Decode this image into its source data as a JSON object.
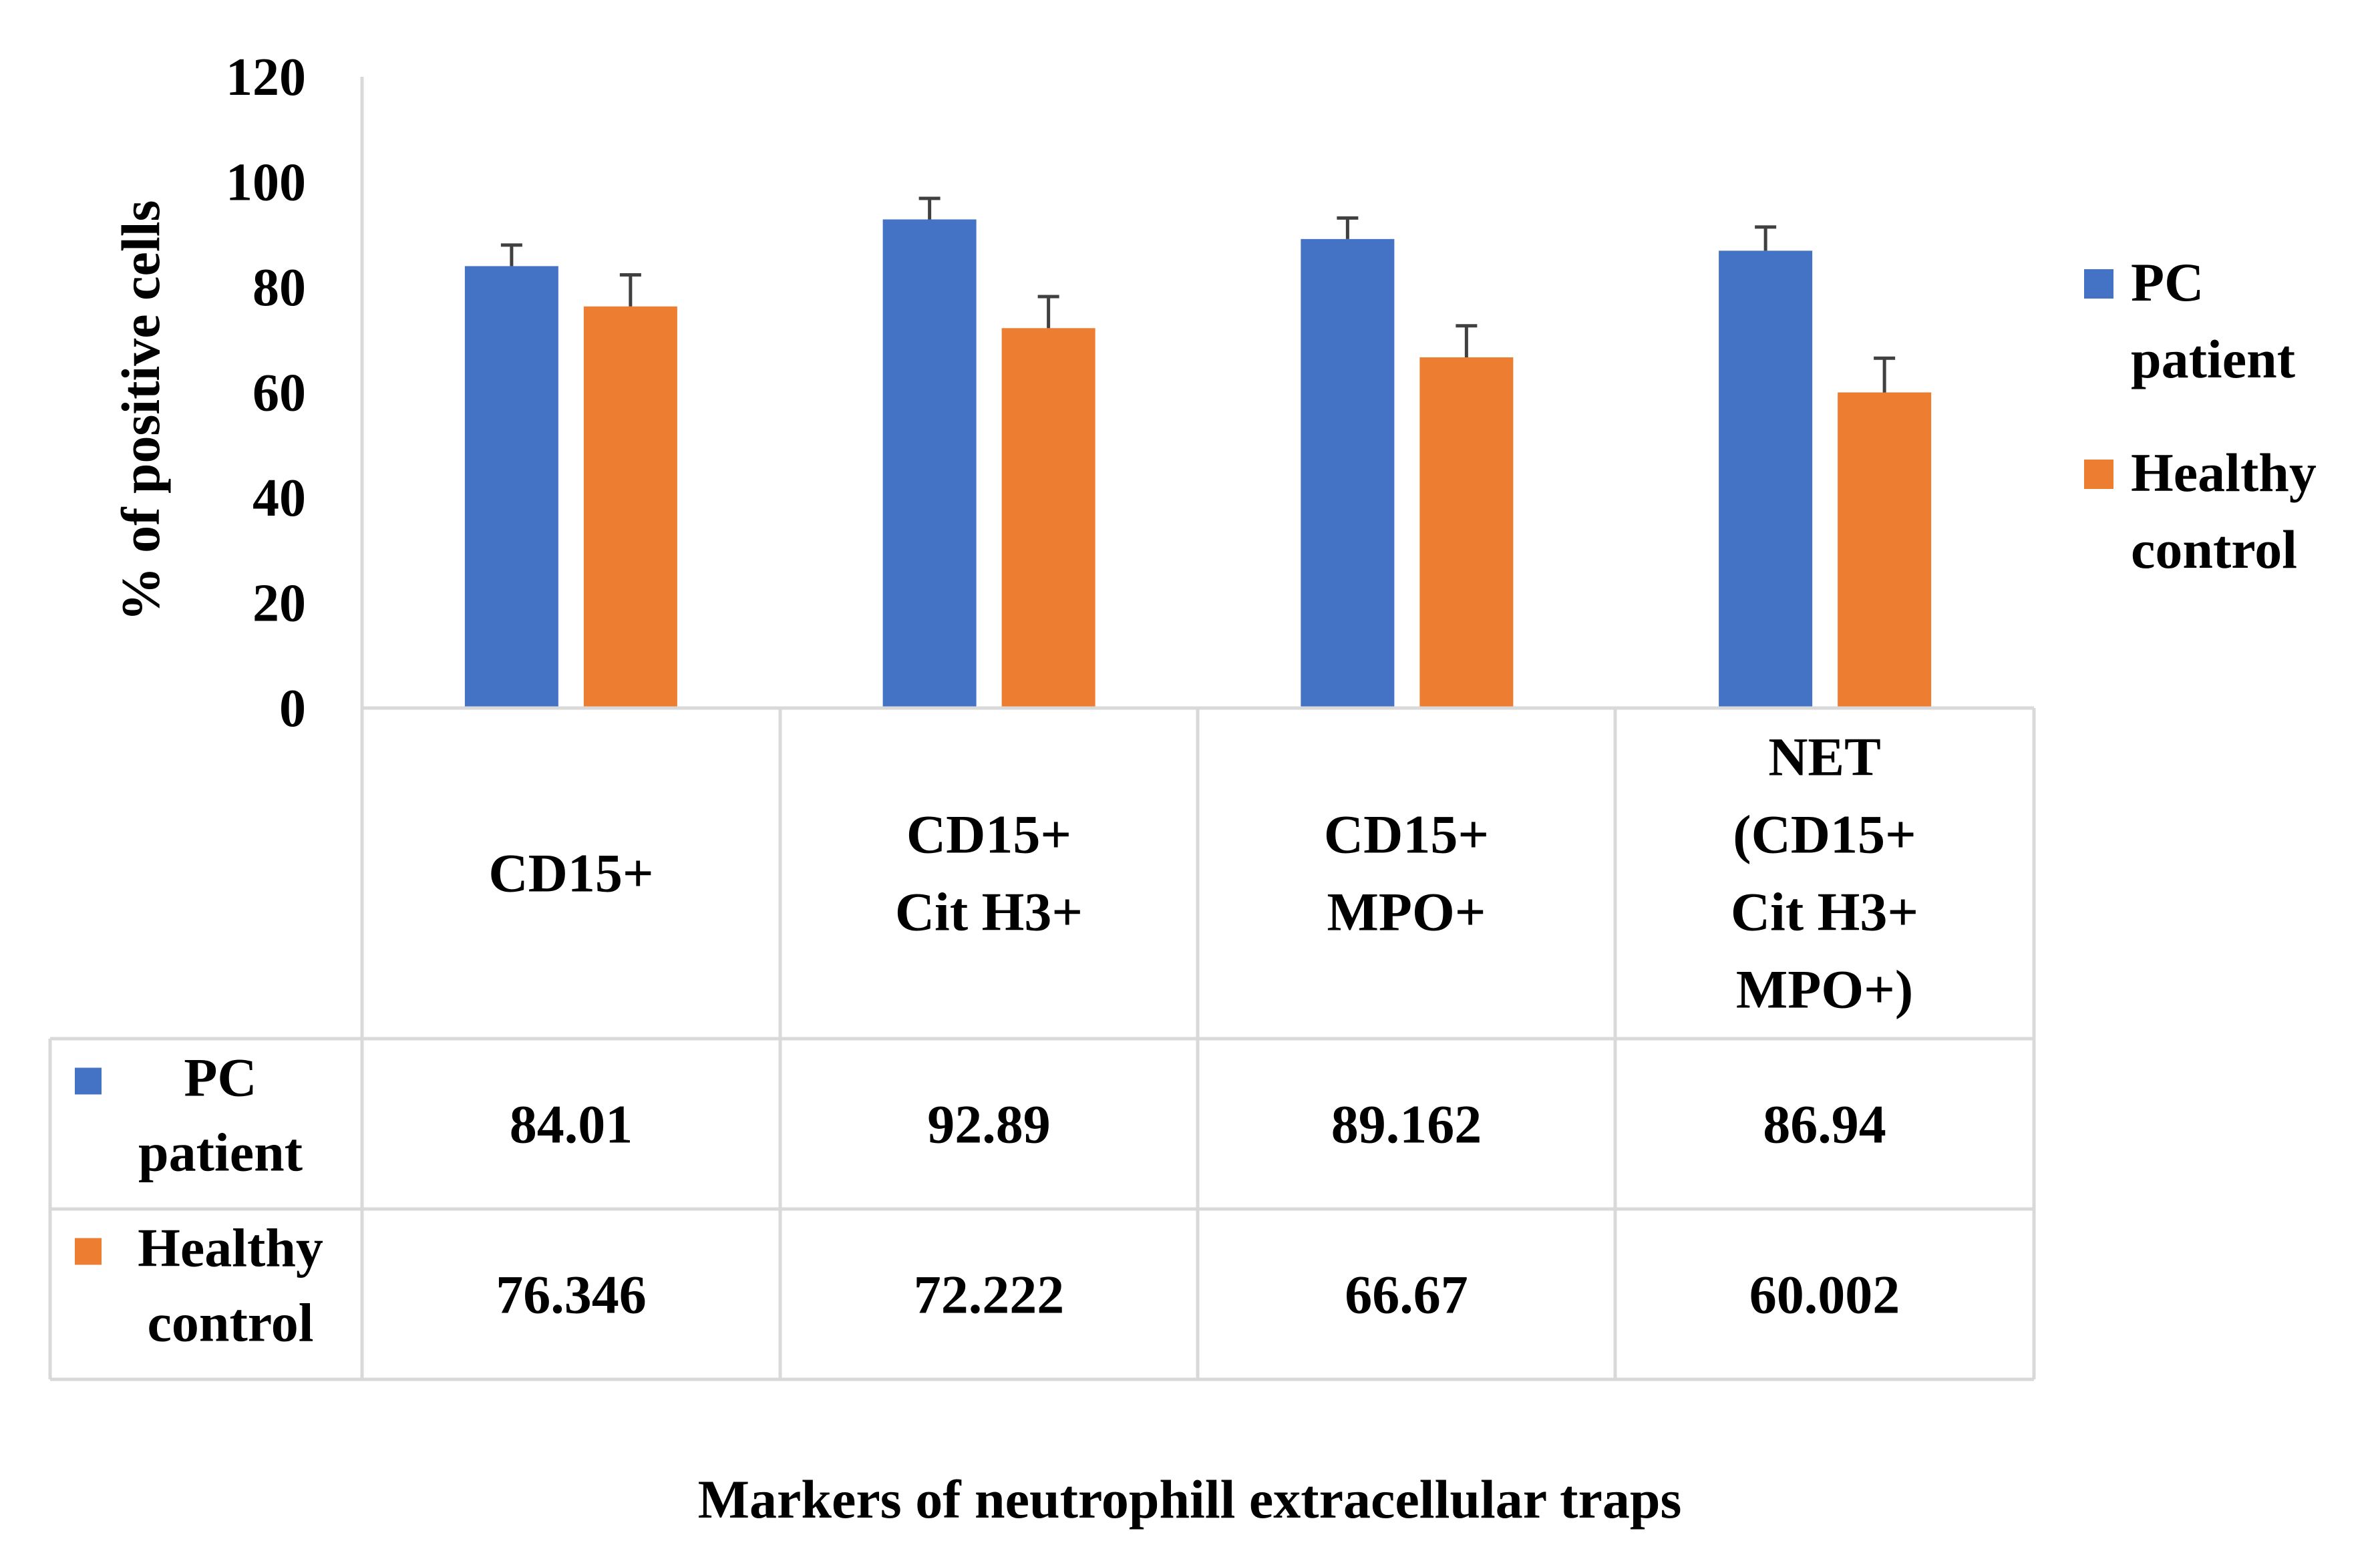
{
  "chart_data": {
    "type": "bar",
    "categories": [
      [
        "CD15+"
      ],
      [
        "CD15+",
        "Cit H3+"
      ],
      [
        "CD15+",
        "MPO+"
      ],
      [
        "NET",
        "(CD15+",
        "Cit H3+",
        "MPO+)"
      ]
    ],
    "series": [
      {
        "name": "PC patient",
        "legend_lines": [
          "PC",
          "patient"
        ],
        "color": "#4472C4",
        "values": [
          84.01,
          92.89,
          89.162,
          86.94
        ],
        "value_labels": [
          "84.01",
          "92.89",
          "89.162",
          "86.94"
        ],
        "errors": [
          4,
          4,
          4,
          4.5
        ]
      },
      {
        "name": "Healthy control",
        "legend_lines": [
          "Healthy",
          "control"
        ],
        "color": "#ED7D31",
        "values": [
          76.346,
          72.222,
          66.67,
          60.002
        ],
        "value_labels": [
          "76.346",
          "72.222",
          "66.67",
          "60.002"
        ],
        "errors": [
          6,
          6,
          6,
          6.5
        ]
      }
    ],
    "ylim": [
      0,
      120
    ],
    "yticks": [
      0,
      20,
      40,
      60,
      80,
      100,
      120
    ],
    "ylabel": "% of positive cells",
    "xlabel": "Markers of neutrophill extracellular traps",
    "legend_position": "right",
    "data_table": true,
    "grid": false
  }
}
